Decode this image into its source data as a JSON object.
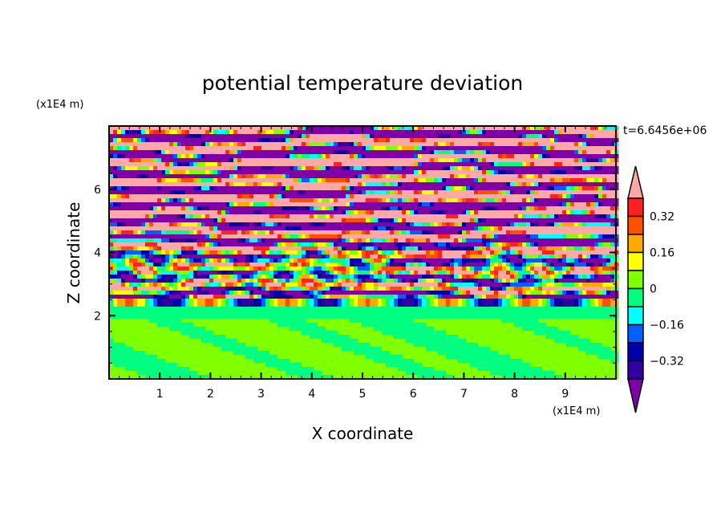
{
  "chart_data": {
    "type": "heatmap",
    "title": "potential temperature deviation",
    "xlabel": "X coordinate",
    "ylabel": "Z coordinate",
    "x_unit": "(x1E4 m)",
    "y_unit": "(x1E4 m)",
    "time_label": "t=6.6456e+06",
    "xlim": [
      0,
      10
    ],
    "ylim": [
      0,
      8
    ],
    "x_ticks": [
      1,
      2,
      3,
      4,
      5,
      6,
      7,
      8,
      9
    ],
    "y_ticks": [
      2,
      4,
      6
    ],
    "contour_levels": [
      -0.4,
      -0.32,
      -0.24,
      -0.16,
      -0.08,
      0,
      0.08,
      0.16,
      0.24,
      0.32,
      0.4
    ],
    "colorbar_labels": [
      "0.32",
      "0.16",
      "0",
      "-0.16",
      "-0.32"
    ],
    "colorbar_label_values": [
      0.32,
      0.16,
      0,
      -0.16,
      -0.32
    ],
    "colors": [
      "#8000a8",
      "#3200a0",
      "#0000a8",
      "#0060ff",
      "#00ffff",
      "#00ff80",
      "#80ff00",
      "#ffff00",
      "#ffa800",
      "#ff5000",
      "#ff2020",
      "#ffa8a8"
    ],
    "description_of_field": "layered bands above z=2.3, weak near-zero swirls below"
  }
}
